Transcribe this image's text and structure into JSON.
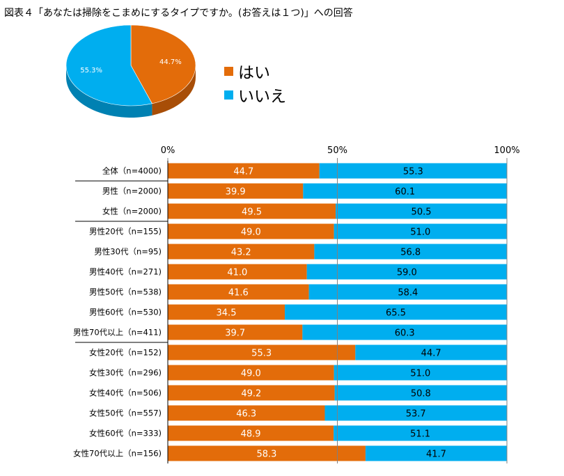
{
  "title": "図表４「あなたは掃除をこまめにするタイプですか。(お答えは１つ)」への回答",
  "colors": {
    "yes": "#E36C0A",
    "no": "#00AEEF",
    "yes_dark": "#A84E07",
    "no_dark": "#0081B2"
  },
  "chart_data": [
    {
      "type": "pie",
      "title": "",
      "slices": [
        {
          "label": "はい",
          "value": 44.7,
          "value_label": "44.7%",
          "color": "#E36C0A"
        },
        {
          "label": "いいえ",
          "value": 55.3,
          "value_label": "55.3%",
          "color": "#00AEEF"
        }
      ],
      "legend": [
        "はい",
        "いいえ"
      ],
      "legend_position": "right"
    },
    {
      "type": "bar",
      "orientation": "horizontal",
      "stacked": true,
      "xlim": [
        0,
        100
      ],
      "ticks": [
        {
          "value": 0,
          "label": "0%"
        },
        {
          "value": 50,
          "label": "50%"
        },
        {
          "value": 100,
          "label": "100%"
        }
      ],
      "categories": [
        "全体（n=4000)",
        "男性（n=2000)",
        "女性（n=2000)",
        "男性20代（n=155)",
        "男性30代（n=95)",
        "男性40代（n=271)",
        "男性50代（n=538)",
        "男性60代（n=530)",
        "男性70代以上（n=411)",
        "女性20代（n=152)",
        "女性30代（n=296)",
        "女性40代（n=506)",
        "女性50代（n=557)",
        "女性60代（n=333)",
        "女性70代以上（n=156)"
      ],
      "group_separators_after": [
        0,
        2,
        8
      ],
      "series": [
        {
          "name": "はい",
          "color": "#E36C0A",
          "values": [
            44.7,
            39.9,
            49.5,
            49.0,
            43.2,
            41.0,
            41.6,
            34.5,
            39.7,
            55.3,
            49.0,
            49.2,
            46.3,
            48.9,
            58.3
          ],
          "labels": [
            "44.7",
            "39.9",
            "49.5",
            "49.0",
            "43.2",
            "41.0",
            "41.6",
            "34.5",
            "39.7",
            "55.3",
            "49.0",
            "49.2",
            "46.3",
            "48.9",
            "58.3"
          ]
        },
        {
          "name": "いいえ",
          "color": "#00AEEF",
          "values": [
            55.3,
            60.1,
            50.5,
            51.0,
            56.8,
            59.0,
            58.4,
            65.5,
            60.3,
            44.7,
            51.0,
            50.8,
            53.7,
            51.1,
            41.7
          ],
          "labels": [
            "55.3",
            "60.1",
            "50.5",
            "51.0",
            "56.8",
            "59.0",
            "58.4",
            "65.5",
            "60.3",
            "44.7",
            "51.0",
            "50.8",
            "53.7",
            "51.1",
            "41.7"
          ]
        }
      ]
    }
  ]
}
